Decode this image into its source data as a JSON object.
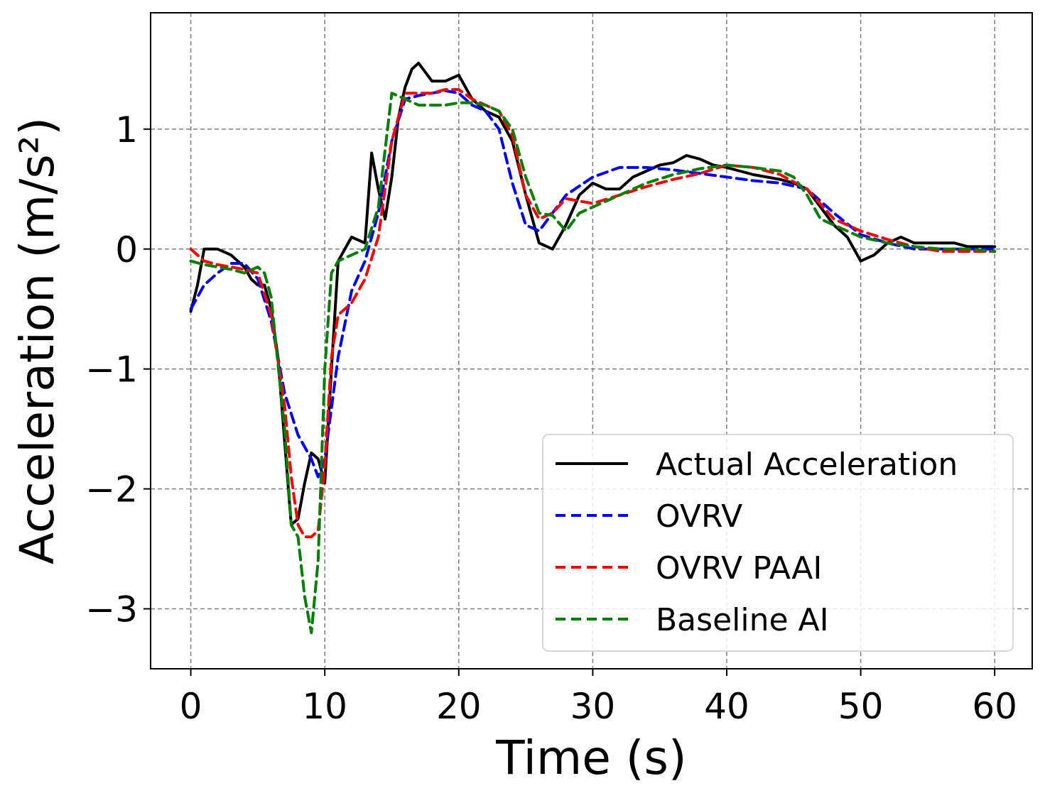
{
  "chart_data": {
    "type": "line",
    "title": "",
    "xlabel": "Time (s)",
    "ylabel": "Acceleration (m/s²)",
    "xlim": [
      -3,
      62.8
    ],
    "ylim": [
      -3.5,
      1.97
    ],
    "xticks": [
      0,
      10,
      20,
      30,
      40,
      50,
      60
    ],
    "yticks": [
      -3,
      -2,
      -1,
      0,
      1
    ],
    "xtick_labels": [
      "0",
      "10",
      "20",
      "30",
      "40",
      "50",
      "60"
    ],
    "ytick_labels": [
      "−3",
      "−2",
      "−1",
      "0",
      "1"
    ],
    "grid": true,
    "legend_position": "lower-right",
    "series": [
      {
        "name": "Actual Acceleration",
        "color": "#000000",
        "style": "solid",
        "x": [
          0,
          0.5,
          1,
          2,
          3,
          4,
          4.5,
          5,
          5.5,
          6,
          6.5,
          7,
          7.5,
          8,
          8.5,
          9,
          9.5,
          10,
          10.5,
          11,
          12,
          13,
          13.5,
          14,
          14.5,
          15,
          15.5,
          16,
          16.5,
          17,
          18,
          19,
          20,
          21,
          22,
          23,
          24,
          25,
          26,
          27,
          28,
          29,
          30,
          31,
          32,
          33,
          34,
          35,
          36,
          37,
          38,
          39,
          40,
          41,
          42,
          43,
          44,
          45,
          46,
          47,
          48,
          49,
          50,
          51,
          52,
          53,
          54,
          55,
          56,
          57,
          58,
          59,
          60
        ],
        "values": [
          -0.52,
          -0.3,
          0.0,
          0.0,
          -0.05,
          -0.15,
          -0.25,
          -0.3,
          -0.3,
          -0.5,
          -0.9,
          -1.6,
          -2.3,
          -2.25,
          -1.95,
          -1.7,
          -1.75,
          -1.95,
          -1.0,
          -0.1,
          0.1,
          0.05,
          0.8,
          0.5,
          0.25,
          0.6,
          1.1,
          1.35,
          1.5,
          1.55,
          1.4,
          1.4,
          1.45,
          1.25,
          1.15,
          1.1,
          0.9,
          0.45,
          0.05,
          0.0,
          0.2,
          0.45,
          0.55,
          0.5,
          0.5,
          0.6,
          0.65,
          0.7,
          0.72,
          0.78,
          0.75,
          0.7,
          0.68,
          0.65,
          0.62,
          0.6,
          0.58,
          0.55,
          0.5,
          0.35,
          0.2,
          0.1,
          -0.1,
          -0.05,
          0.05,
          0.1,
          0.05,
          0.05,
          0.05,
          0.05,
          0.02,
          0.02,
          0.02
        ]
      },
      {
        "name": "OVRV",
        "color": "#0000ff",
        "style": "dashed",
        "x": [
          0,
          1,
          2,
          3,
          4,
          5,
          6,
          7,
          8,
          9,
          9.5,
          10,
          11,
          12,
          13,
          14,
          15,
          16,
          17,
          18,
          19,
          20,
          21,
          22,
          23,
          24,
          25,
          26,
          27,
          28,
          30,
          32,
          34,
          36,
          38,
          40,
          42,
          44,
          46,
          48,
          50,
          52,
          54,
          56,
          58,
          60
        ],
        "values": [
          -0.5,
          -0.3,
          -0.2,
          -0.12,
          -0.12,
          -0.25,
          -0.6,
          -1.2,
          -1.55,
          -1.75,
          -1.9,
          -1.75,
          -0.9,
          -0.35,
          -0.1,
          0.3,
          0.9,
          1.25,
          1.28,
          1.3,
          1.32,
          1.3,
          1.2,
          1.15,
          1.0,
          0.55,
          0.2,
          0.15,
          0.3,
          0.45,
          0.6,
          0.68,
          0.68,
          0.66,
          0.63,
          0.6,
          0.57,
          0.55,
          0.5,
          0.3,
          0.12,
          0.05,
          0.0,
          0.0,
          0.0,
          0.0
        ]
      },
      {
        "name": "OVRV PAAI",
        "color": "#ff0000",
        "style": "dashed",
        "x": [
          0,
          1,
          2,
          3,
          4,
          5,
          6,
          7,
          7.5,
          8,
          8.5,
          9,
          9.5,
          10,
          10.5,
          11,
          12,
          13,
          14,
          15,
          16,
          17,
          18,
          19,
          20,
          21,
          22,
          23,
          24,
          25,
          26,
          27,
          28,
          30,
          32,
          34,
          36,
          38,
          40,
          42,
          44,
          46,
          48,
          50,
          52,
          54,
          56,
          58,
          60
        ],
        "values": [
          0.0,
          -0.1,
          -0.13,
          -0.15,
          -0.17,
          -0.2,
          -0.55,
          -1.3,
          -1.9,
          -2.3,
          -2.4,
          -2.4,
          -2.35,
          -1.8,
          -0.9,
          -0.55,
          -0.45,
          -0.25,
          0.1,
          0.9,
          1.3,
          1.3,
          1.3,
          1.33,
          1.33,
          1.25,
          1.2,
          1.15,
          0.95,
          0.45,
          0.25,
          0.3,
          0.42,
          0.38,
          0.45,
          0.52,
          0.58,
          0.63,
          0.7,
          0.68,
          0.62,
          0.5,
          0.25,
          0.15,
          0.08,
          0.02,
          -0.02,
          -0.02,
          -0.02
        ]
      },
      {
        "name": "Baseline AI",
        "color": "#008000",
        "style": "dashed",
        "x": [
          0,
          1,
          2,
          3,
          4,
          5,
          5.5,
          6,
          7,
          7.5,
          8,
          8.5,
          9,
          9.5,
          10,
          10.5,
          11,
          12,
          13,
          14,
          15,
          16,
          17,
          18,
          19,
          20,
          21,
          22,
          23,
          24,
          25,
          26,
          27,
          28,
          29,
          30,
          32,
          34,
          36,
          38,
          40,
          42,
          44,
          45,
          46,
          47,
          48,
          50,
          52,
          54,
          56,
          58,
          60
        ],
        "values": [
          -0.1,
          -0.13,
          -0.15,
          -0.17,
          -0.2,
          -0.15,
          -0.2,
          -0.4,
          -1.5,
          -2.3,
          -2.4,
          -2.9,
          -3.2,
          -2.6,
          -1.0,
          -0.2,
          -0.1,
          -0.05,
          0.0,
          0.35,
          1.3,
          1.25,
          1.2,
          1.2,
          1.2,
          1.22,
          1.22,
          1.2,
          1.15,
          1.0,
          0.6,
          0.3,
          0.28,
          0.15,
          0.3,
          0.35,
          0.45,
          0.55,
          0.62,
          0.67,
          0.7,
          0.68,
          0.65,
          0.6,
          0.45,
          0.25,
          0.2,
          0.1,
          0.05,
          0.02,
          0.0,
          0.0,
          -0.02
        ]
      }
    ]
  }
}
